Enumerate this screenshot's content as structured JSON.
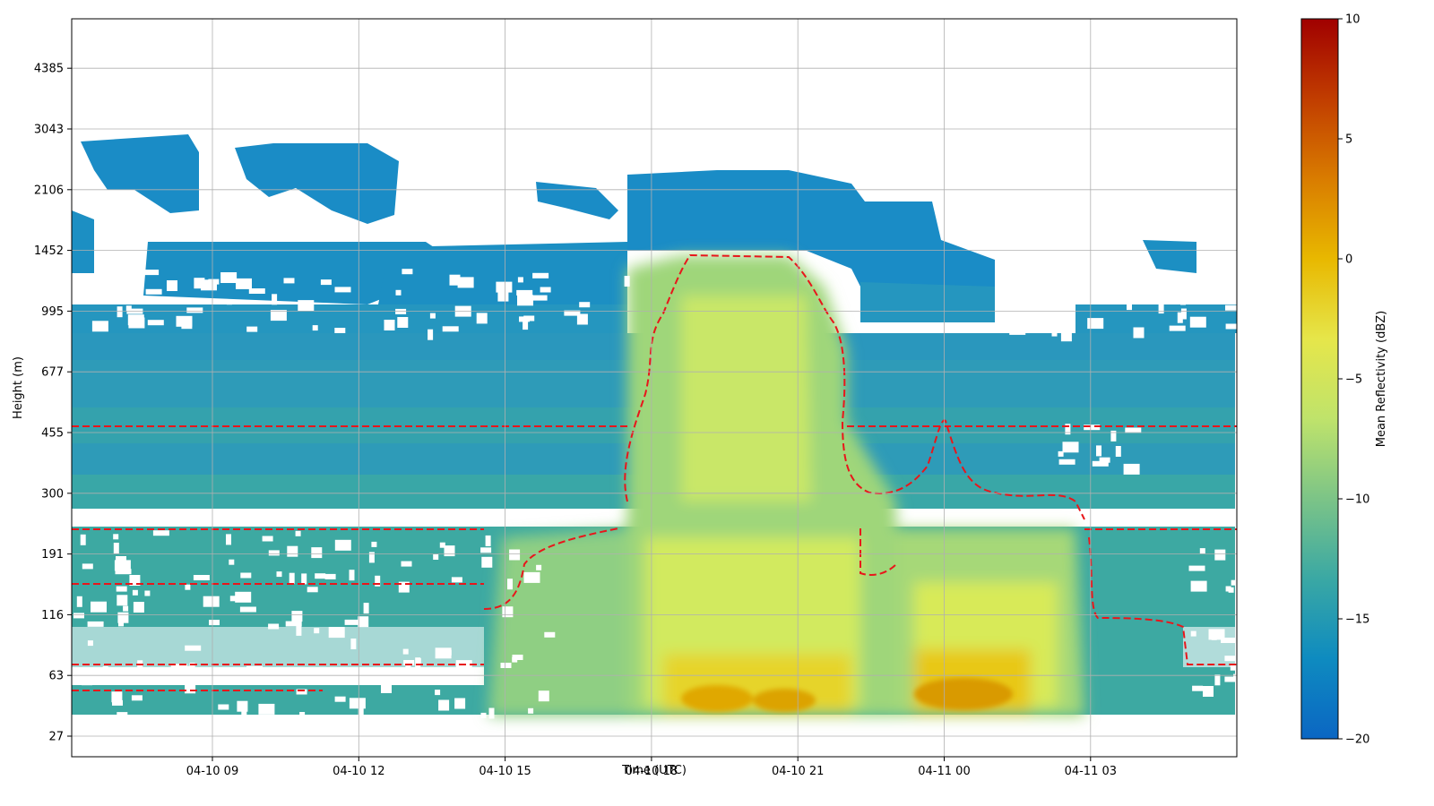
{
  "chart_data": {
    "type": "heatmap",
    "title": "",
    "xlabel": "Time (UTC)",
    "ylabel": "Height (m)",
    "x_ticks": [
      "04-10 09",
      "04-10 12",
      "04-10 15",
      "04-10 18",
      "04-10 21",
      "04-11 00",
      "04-11 03"
    ],
    "y_ticks": [
      "27",
      "63",
      "116",
      "191",
      "300",
      "455",
      "677",
      "995",
      "1452",
      "2106",
      "3043",
      "4385"
    ],
    "colorbar": {
      "label": "Mean Reflectivity (dBZ)",
      "min": -20,
      "max": 10,
      "ticks": [
        "10",
        "5",
        "0",
        "−5",
        "−10",
        "−15",
        "−20"
      ],
      "colors": [
        "#0b66c3",
        "#0e8bc0",
        "#3aa8a4",
        "#7cc487",
        "#bfe36b",
        "#e6e64a",
        "#e8b800",
        "#d97c00",
        "#c13d00",
        "#a00000"
      ]
    },
    "contour": {
      "color": "#e8161b",
      "style": "dashed"
    },
    "grid": true,
    "x_range": [
      "04-10 06",
      "04-11 06"
    ],
    "y_range": [
      27,
      6300
    ]
  }
}
